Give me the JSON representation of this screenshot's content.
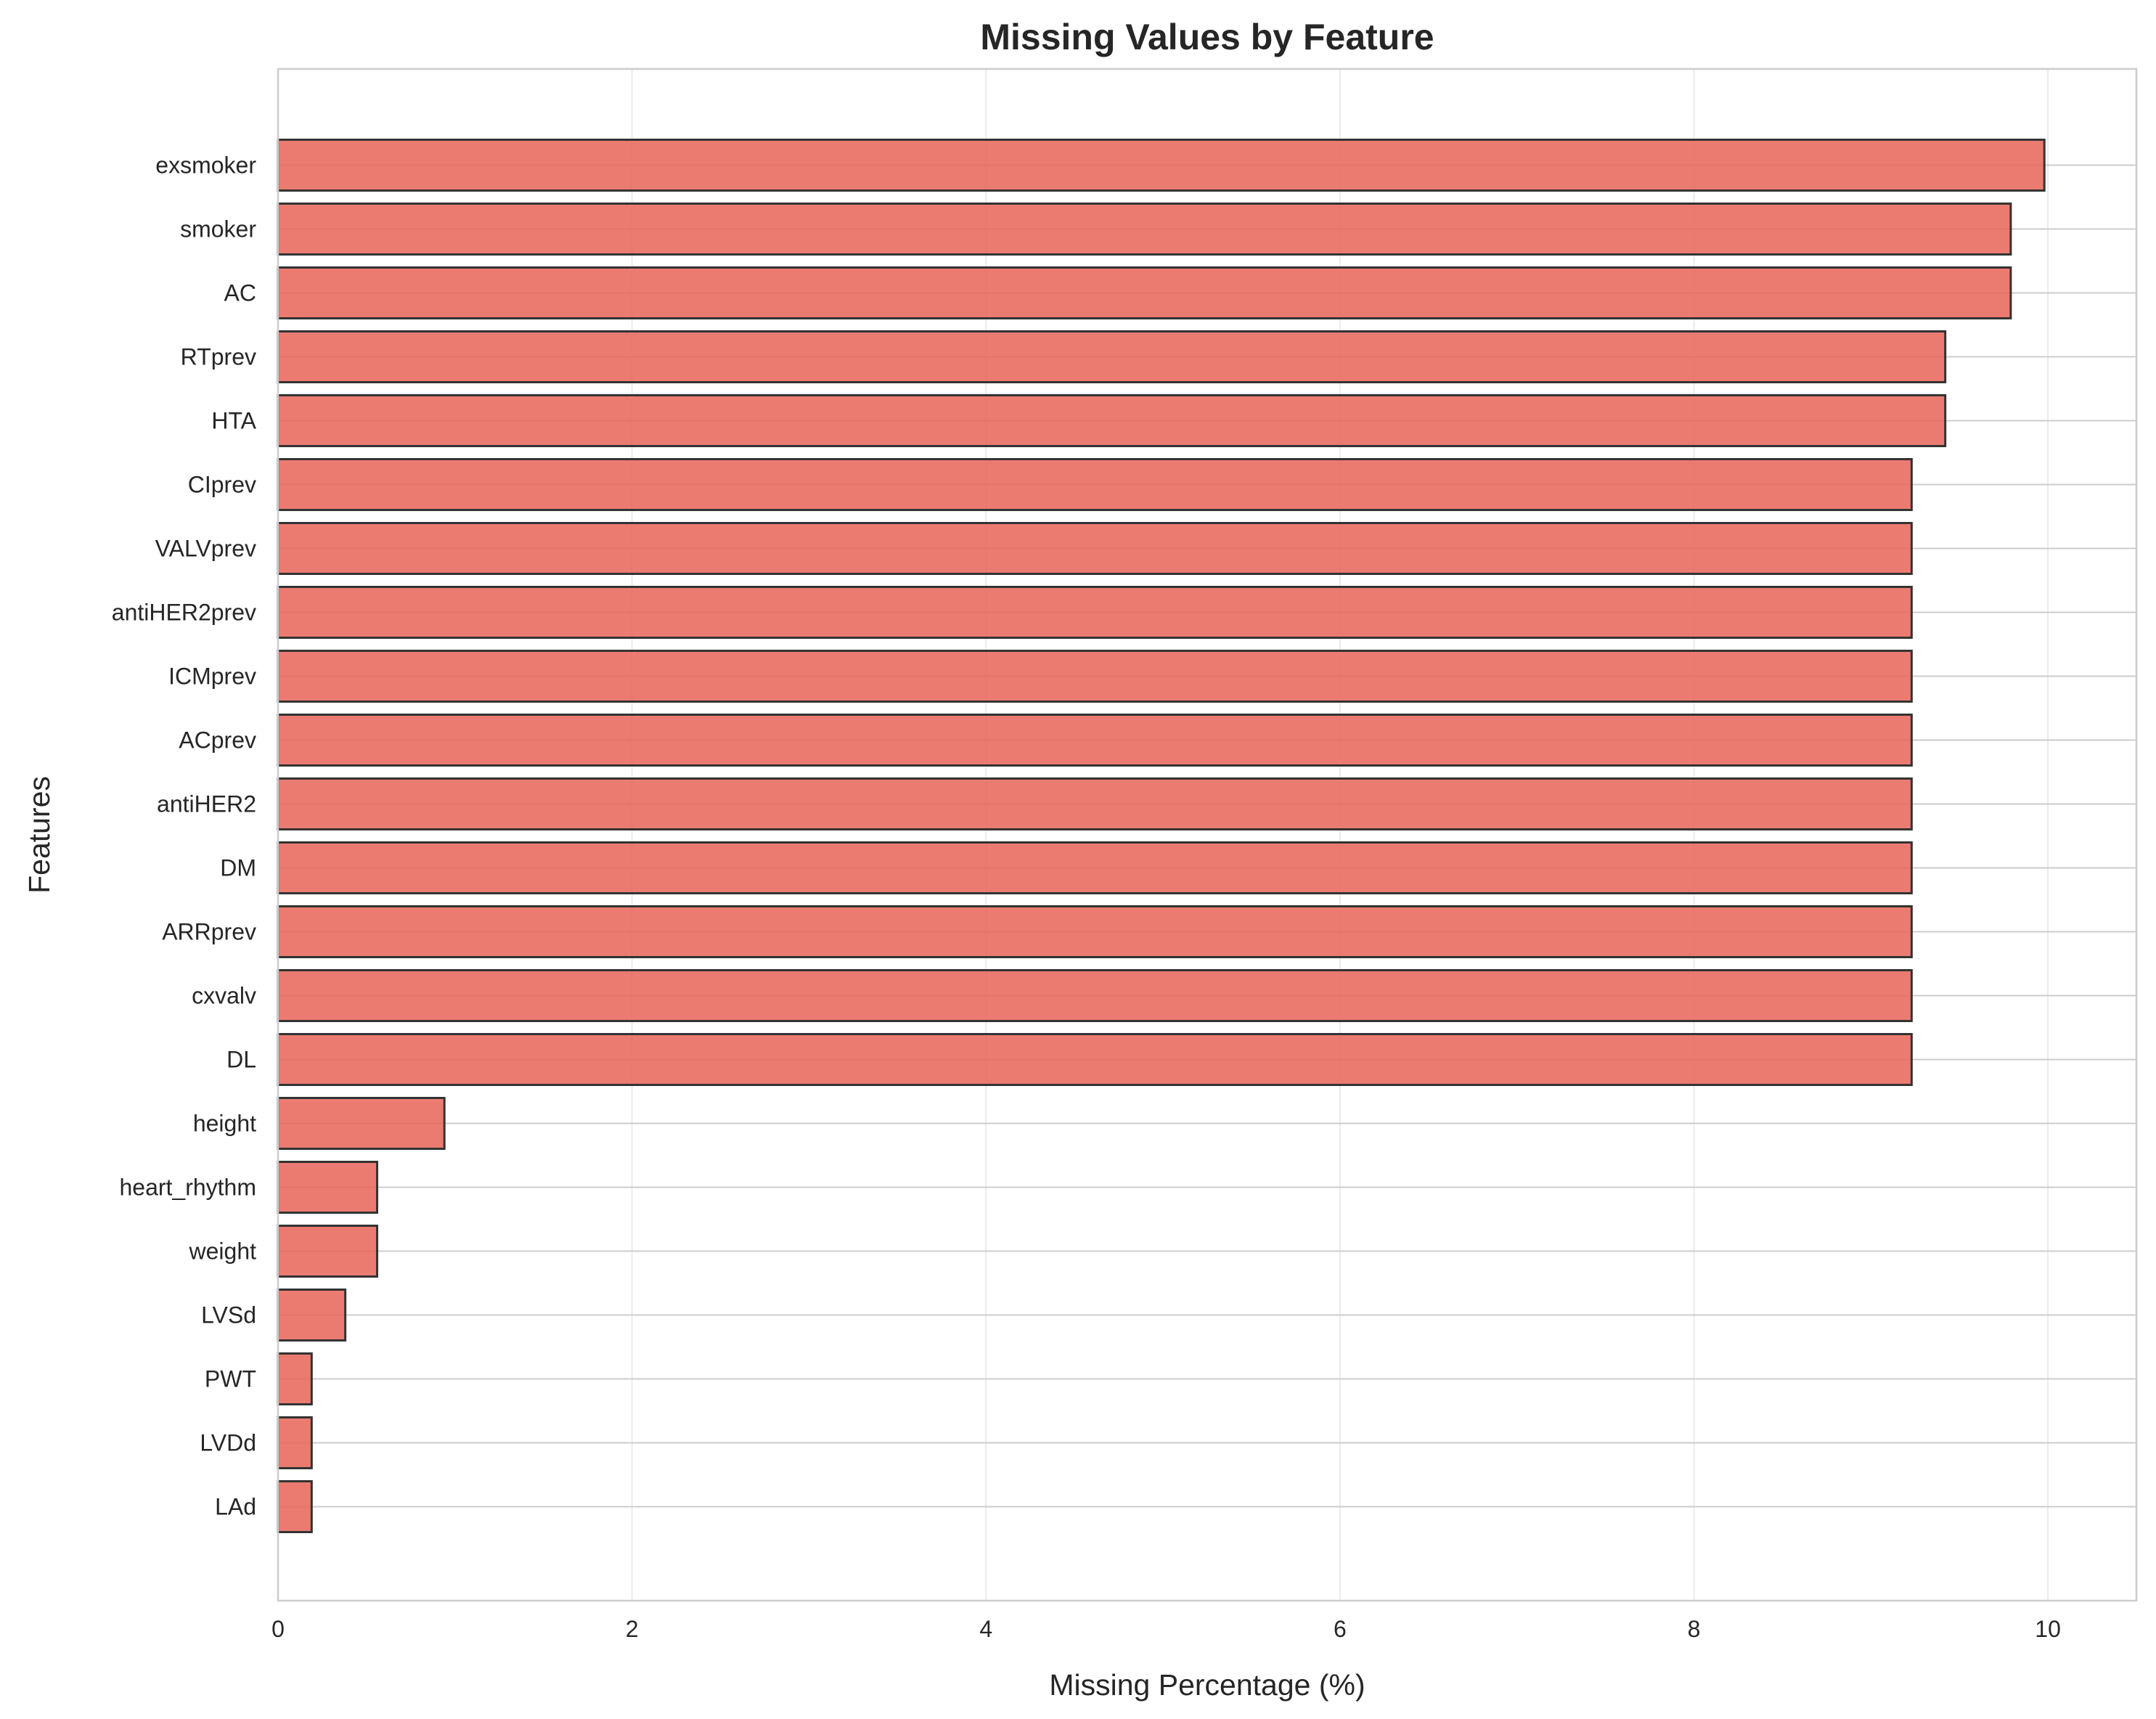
{
  "chart_data": {
    "type": "bar",
    "orientation": "horizontal",
    "title": "Missing Values by Feature",
    "xlabel": "Missing Percentage (%)",
    "ylabel": "Features",
    "xlim": [
      0,
      10.5
    ],
    "xticks": [
      0,
      2,
      4,
      6,
      8,
      10
    ],
    "grid": true,
    "legend": "none",
    "categories": [
      "exsmoker",
      "smoker",
      "AC",
      "RTprev",
      "HTA",
      "CIprev",
      "VALVprev",
      "antiHER2prev",
      "ICMprev",
      "ACprev",
      "antiHER2",
      "DM",
      "ARRprev",
      "cxvalv",
      "DL",
      "height",
      "heart_rhythm",
      "weight",
      "LVSd",
      "PWT",
      "LVDd",
      "LAd"
    ],
    "values": [
      9.98,
      9.79,
      9.79,
      9.42,
      9.42,
      9.23,
      9.23,
      9.23,
      9.23,
      9.23,
      9.23,
      9.23,
      9.23,
      9.23,
      9.23,
      0.94,
      0.56,
      0.56,
      0.38,
      0.19,
      0.19,
      0.19
    ],
    "bar_color": "#e8695d",
    "edge_color": "#333333"
  }
}
